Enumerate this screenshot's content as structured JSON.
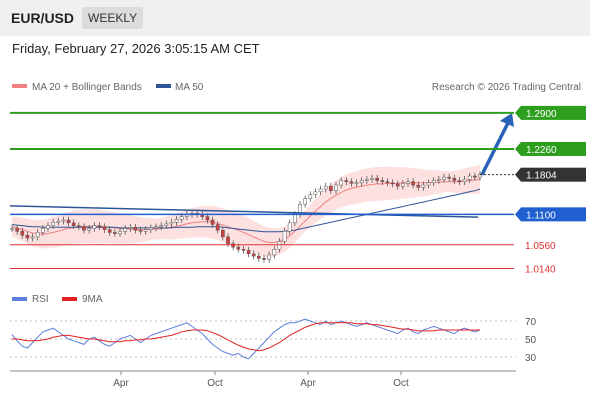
{
  "header": {
    "symbol": "EUR/USD",
    "period": "WEEKLY"
  },
  "timestamp": "Friday, February 27, 2026 3:05:15 AM CET",
  "legend": {
    "main": [
      {
        "label": "MA 20 + Bollinger Bands",
        "color": "#f08080"
      },
      {
        "label": "MA 50",
        "color": "#2f5597"
      }
    ],
    "credit": "Research © 2026 Trading Central",
    "rsi": [
      {
        "label": "RSI",
        "color": "#5b7fdc"
      },
      {
        "label": "9MA",
        "color": "#e02020"
      }
    ]
  },
  "levels": [
    {
      "label": "1.2900",
      "value": 1.29,
      "type": "resistance",
      "color": "#2e9e1e"
    },
    {
      "label": "1.2260",
      "value": 1.226,
      "type": "resistance",
      "color": "#2e9e1e"
    },
    {
      "label": "1.1804",
      "value": 1.1804,
      "type": "last",
      "color": "#333333"
    },
    {
      "label": "1.1100",
      "value": 1.11,
      "type": "pivot",
      "color": "#1f5fd0"
    },
    {
      "label": "1.0560",
      "value": 1.056,
      "type": "support",
      "color": "#e03030"
    },
    {
      "label": "1.0140",
      "value": 1.014,
      "type": "support",
      "color": "#e03030"
    }
  ],
  "chart_data": {
    "type": "candlestick",
    "x_labels": [
      "Apr",
      "Oct",
      "Apr",
      "Oct"
    ],
    "price_range": [
      0.99,
      1.32
    ],
    "close": [
      1.085,
      1.08,
      1.073,
      1.068,
      1.07,
      1.078,
      1.085,
      1.09,
      1.096,
      1.098,
      1.1,
      1.095,
      1.09,
      1.088,
      1.082,
      1.085,
      1.09,
      1.088,
      1.083,
      1.078,
      1.076,
      1.08,
      1.085,
      1.087,
      1.082,
      1.08,
      1.083,
      1.086,
      1.088,
      1.09,
      1.093,
      1.096,
      1.101,
      1.106,
      1.11,
      1.112,
      1.11,
      1.106,
      1.1,
      1.092,
      1.082,
      1.07,
      1.058,
      1.052,
      1.048,
      1.046,
      1.04,
      1.036,
      1.032,
      1.03,
      1.038,
      1.048,
      1.062,
      1.08,
      1.095,
      1.11,
      1.128,
      1.138,
      1.145,
      1.15,
      1.155,
      1.16,
      1.152,
      1.162,
      1.17,
      1.168,
      1.165,
      1.166,
      1.17,
      1.172,
      1.174,
      1.17,
      1.168,
      1.166,
      1.164,
      1.16,
      1.165,
      1.168,
      1.162,
      1.158,
      1.162,
      1.166,
      1.17,
      1.172,
      1.176,
      1.174,
      1.17,
      1.168,
      1.172,
      1.178,
      1.176,
      1.1804
    ],
    "ma20": [
      1.088,
      1.086,
      1.083,
      1.08,
      1.077,
      1.076,
      1.075,
      1.076,
      1.078,
      1.08,
      1.083,
      1.085,
      1.087,
      1.088,
      1.089,
      1.089,
      1.089,
      1.089,
      1.088,
      1.087,
      1.086,
      1.085,
      1.084,
      1.084,
      1.083,
      1.083,
      1.083,
      1.084,
      1.084,
      1.085,
      1.086,
      1.087,
      1.089,
      1.091,
      1.093,
      1.095,
      1.096,
      1.097,
      1.097,
      1.096,
      1.094,
      1.091,
      1.088,
      1.085,
      1.082,
      1.078,
      1.074,
      1.07,
      1.066,
      1.062,
      1.06,
      1.06,
      1.062,
      1.066,
      1.072,
      1.08,
      1.089,
      1.098,
      1.107,
      1.116,
      1.124,
      1.132,
      1.138,
      1.144,
      1.149,
      1.153,
      1.156,
      1.158,
      1.16,
      1.162,
      1.163,
      1.164,
      1.164,
      1.165,
      1.165,
      1.165,
      1.166,
      1.166,
      1.166,
      1.166,
      1.166,
      1.166,
      1.167,
      1.167,
      1.168,
      1.168,
      1.168,
      1.168,
      1.169,
      1.17,
      1.171,
      1.172
    ],
    "ma50": [
      1.092,
      1.091,
      1.09,
      1.089,
      1.088,
      1.088,
      1.087,
      1.087,
      1.087,
      1.087,
      1.087,
      1.087,
      1.087,
      1.087,
      1.087,
      1.087,
      1.087,
      1.087,
      1.087,
      1.087,
      1.087,
      1.086,
      1.086,
      1.086,
      1.086,
      1.086,
      1.086,
      1.086,
      1.086,
      1.086,
      1.086,
      1.086,
      1.087,
      1.087,
      1.087,
      1.087,
      1.088,
      1.088,
      1.088,
      1.088,
      1.088,
      1.087,
      1.086,
      1.085,
      1.084,
      1.083,
      1.082,
      1.081,
      1.08,
      1.079,
      1.079,
      1.079,
      1.079,
      1.08,
      1.081,
      1.082,
      1.084,
      1.086,
      1.088,
      1.09,
      1.092,
      1.094,
      1.096,
      1.098,
      1.1,
      1.102,
      1.104,
      1.106,
      1.108,
      1.11,
      1.112,
      1.114,
      1.116,
      1.118,
      1.12,
      1.122,
      1.124,
      1.126,
      1.128,
      1.13,
      1.132,
      1.134,
      1.136,
      1.138,
      1.14,
      1.142,
      1.144,
      1.146,
      1.148,
      1.15,
      1.152,
      1.155
    ],
    "trendline": {
      "start": 1.125,
      "end": 1.105
    },
    "projection": {
      "from": 1.1804,
      "to": 1.29
    },
    "rsi": {
      "ticks": [
        70,
        50,
        30
      ],
      "range": [
        20,
        80
      ],
      "rsi": [
        55,
        48,
        42,
        40,
        46,
        52,
        58,
        60,
        62,
        58,
        54,
        50,
        48,
        46,
        44,
        50,
        52,
        48,
        44,
        42,
        46,
        50,
        52,
        54,
        50,
        46,
        50,
        54,
        56,
        58,
        60,
        62,
        64,
        66,
        68,
        64,
        60,
        56,
        50,
        44,
        40,
        36,
        34,
        32,
        34,
        30,
        28,
        34,
        40,
        46,
        52,
        58,
        62,
        66,
        68,
        68,
        70,
        72,
        70,
        68,
        66,
        70,
        66,
        68,
        70,
        68,
        66,
        64,
        66,
        68,
        66,
        64,
        62,
        60,
        58,
        56,
        60,
        62,
        58,
        56,
        60,
        62,
        64,
        62,
        60,
        58,
        56,
        60,
        62,
        60,
        58,
        60
      ],
      "ma9": [
        50,
        50,
        49,
        48,
        48,
        48,
        49,
        50,
        52,
        53,
        54,
        54,
        53,
        52,
        51,
        50,
        50,
        49,
        48,
        47,
        47,
        47,
        48,
        48,
        49,
        49,
        50,
        50,
        51,
        52,
        53,
        54,
        56,
        58,
        59,
        60,
        60,
        60,
        59,
        57,
        55,
        52,
        49,
        46,
        43,
        41,
        39,
        38,
        37,
        38,
        40,
        43,
        46,
        50,
        54,
        57,
        60,
        63,
        65,
        67,
        68,
        68,
        68,
        68,
        68,
        68,
        68,
        67,
        67,
        67,
        66,
        66,
        65,
        64,
        63,
        62,
        61,
        61,
        60,
        59,
        59,
        59,
        59,
        60,
        60,
        60,
        60,
        60,
        60,
        60,
        60,
        60
      ]
    }
  }
}
